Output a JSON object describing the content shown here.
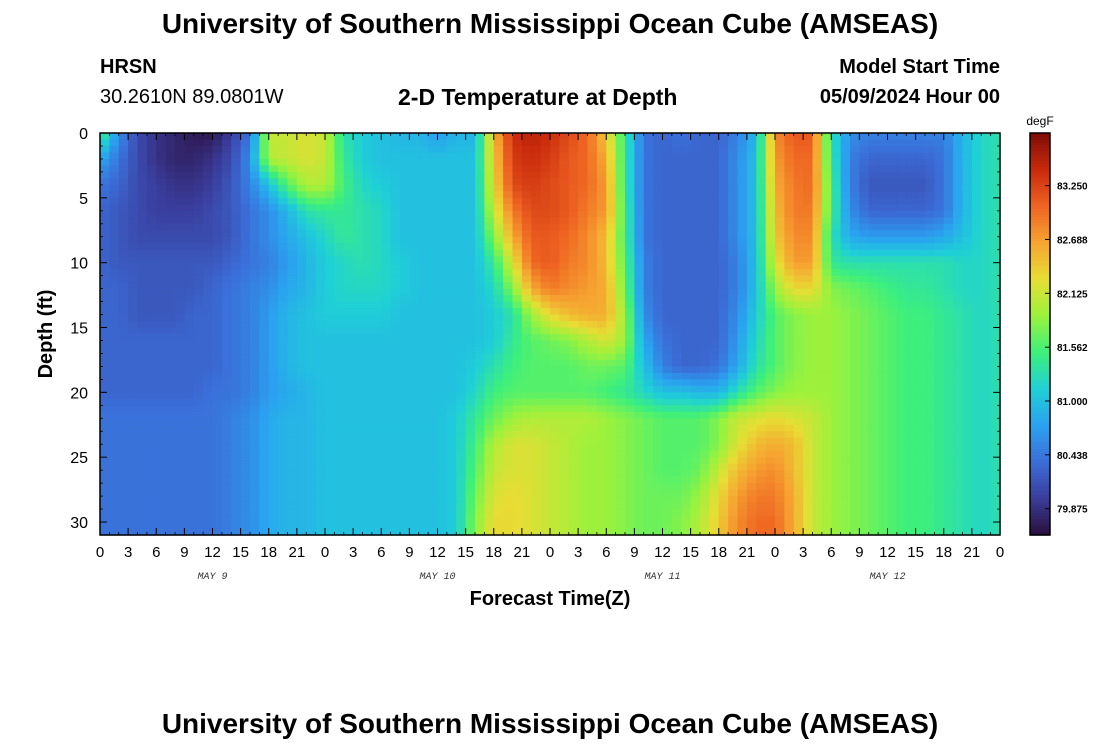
{
  "header": {
    "title": "University of Southern Mississippi Ocean Cube (AMSEAS)",
    "station": "HRSN",
    "coords": "30.2610N  89.0801W",
    "plot_title": "2-D Temperature at Depth",
    "start_label": "Model Start Time",
    "start_value": "05/09/2024 Hour 00"
  },
  "footer": {
    "title": "University of Southern Mississippi Ocean Cube (AMSEAS)"
  },
  "colors": {
    "colormap": [
      "#2a0f3c",
      "#3a3c9a",
      "#3b6ed8",
      "#2aa2f0",
      "#1fd0d6",
      "#3ef07a",
      "#9bf23c",
      "#e7dd34",
      "#f6a431",
      "#ee6322",
      "#c82a0c",
      "#7f0c05"
    ]
  },
  "chart_data": {
    "type": "heatmap",
    "title": "2-D Temperature at Depth",
    "xlabel": "Forecast Time(Z)",
    "ylabel": "Depth (ft)",
    "xlim": [
      0,
      96
    ],
    "ylim": [
      31,
      0
    ],
    "x_tick_hours": [
      0,
      3,
      6,
      9,
      12,
      15,
      18,
      21,
      24,
      27,
      30,
      33,
      36,
      39,
      42,
      45,
      48,
      51,
      54,
      57,
      60,
      63,
      66,
      69,
      72,
      75,
      78,
      81,
      84,
      87,
      90,
      93,
      96
    ],
    "x_tick_labels": [
      "0",
      "3",
      "6",
      "9",
      "12",
      "15",
      "18",
      "21",
      "0",
      "3",
      "6",
      "9",
      "12",
      "15",
      "18",
      "21",
      "0",
      "3",
      "6",
      "9",
      "12",
      "15",
      "18",
      "21",
      "0",
      "3",
      "6",
      "9",
      "12",
      "15",
      "18",
      "21",
      "0"
    ],
    "date_labels": [
      {
        "label": "MAY 9",
        "hour": 12
      },
      {
        "label": "MAY 10",
        "hour": 36
      },
      {
        "label": "MAY 11",
        "hour": 60
      },
      {
        "label": "MAY 12",
        "hour": 84
      }
    ],
    "y_ticks": [
      0,
      5,
      10,
      15,
      20,
      25,
      30
    ],
    "colorbar": {
      "unit": "degF",
      "min": 79.6,
      "max": 83.8,
      "ticks": [
        79.875,
        80.438,
        81.0,
        81.562,
        82.125,
        82.688,
        83.25
      ],
      "tick_labels": [
        "79.875",
        "80.438",
        "81.000",
        "81.562",
        "82.125",
        "82.688",
        "83.250"
      ]
    },
    "times": [
      0,
      2,
      4,
      6,
      8,
      10,
      12,
      14,
      16,
      18,
      20,
      22,
      24,
      26,
      28,
      30,
      32,
      34,
      36,
      38,
      40,
      42,
      44,
      46,
      48,
      50,
      52,
      54,
      56,
      58,
      60,
      62,
      64,
      66,
      68,
      70,
      72,
      74,
      76,
      78,
      80,
      82,
      84,
      86,
      88,
      90,
      92,
      94,
      96
    ],
    "depths": [
      0,
      2,
      4,
      6,
      8,
      10,
      12,
      14,
      16,
      18,
      20,
      22,
      24,
      26,
      28,
      30,
      31
    ],
    "values": [
      [
        81.6,
        80.6,
        80.1,
        79.9,
        79.8,
        79.7,
        79.7,
        80.0,
        80.4,
        82.1,
        82.1,
        82.2,
        82.1,
        81.3,
        81.1,
        81.0,
        80.9,
        80.9,
        80.7,
        80.9,
        80.9,
        82.5,
        83.4,
        83.5,
        83.4,
        83.2,
        83.0,
        82.4,
        81.4,
        80.4,
        80.3,
        80.4,
        80.3,
        80.3,
        80.5,
        80.9,
        82.8,
        83.1,
        83.1,
        81.3,
        80.6,
        80.5,
        80.5,
        80.5,
        80.5,
        80.5,
        80.9,
        81.2,
        81.3
      ],
      [
        80.8,
        80.4,
        80.1,
        79.9,
        79.8,
        79.8,
        79.9,
        80.1,
        80.6,
        82.0,
        82.1,
        82.2,
        82.1,
        81.4,
        81.1,
        81.0,
        81.0,
        81.0,
        81.0,
        81.0,
        81.0,
        82.4,
        83.3,
        83.4,
        83.3,
        83.1,
        83.0,
        82.6,
        81.4,
        80.4,
        80.3,
        80.3,
        80.3,
        80.3,
        80.6,
        81.0,
        82.7,
        83.0,
        83.0,
        81.4,
        80.5,
        80.3,
        80.3,
        80.3,
        80.3,
        80.4,
        80.9,
        81.2,
        81.3
      ],
      [
        80.4,
        80.3,
        80.1,
        80.0,
        79.9,
        79.9,
        80.0,
        80.2,
        80.5,
        81.0,
        81.6,
        82.0,
        82.0,
        81.5,
        81.2,
        81.1,
        81.0,
        81.0,
        81.0,
        81.0,
        81.0,
        82.3,
        83.2,
        83.3,
        83.2,
        83.1,
        83.0,
        82.7,
        81.4,
        80.4,
        80.3,
        80.3,
        80.3,
        80.3,
        80.6,
        81.0,
        82.6,
        82.9,
        83.0,
        81.5,
        80.5,
        80.2,
        80.2,
        80.2,
        80.2,
        80.4,
        80.9,
        81.2,
        81.3
      ],
      [
        80.3,
        80.2,
        80.1,
        80.0,
        80.0,
        80.0,
        80.1,
        80.2,
        80.4,
        80.6,
        80.9,
        81.3,
        81.4,
        81.4,
        81.3,
        81.2,
        81.0,
        81.0,
        81.0,
        81.0,
        81.0,
        82.1,
        82.9,
        83.2,
        83.2,
        83.1,
        82.9,
        82.7,
        81.5,
        80.4,
        80.3,
        80.3,
        80.3,
        80.3,
        80.6,
        81.0,
        82.5,
        82.9,
        82.9,
        81.5,
        80.6,
        80.3,
        80.3,
        80.3,
        80.3,
        80.4,
        80.9,
        81.2,
        81.3
      ],
      [
        80.3,
        80.2,
        80.1,
        80.1,
        80.1,
        80.1,
        80.1,
        80.2,
        80.4,
        80.6,
        80.8,
        81.0,
        81.2,
        81.4,
        81.3,
        81.2,
        81.0,
        81.0,
        81.0,
        81.0,
        81.0,
        81.8,
        82.6,
        83.1,
        83.1,
        83.0,
        82.8,
        82.5,
        81.5,
        80.4,
        80.3,
        80.3,
        80.3,
        80.3,
        80.6,
        81.0,
        82.4,
        82.8,
        82.8,
        81.3,
        80.8,
        80.7,
        80.7,
        80.7,
        80.7,
        80.8,
        81.0,
        81.2,
        81.3
      ],
      [
        80.3,
        80.2,
        80.2,
        80.2,
        80.2,
        80.2,
        80.2,
        80.3,
        80.4,
        80.5,
        80.7,
        80.9,
        81.1,
        81.2,
        81.3,
        81.2,
        81.1,
        81.0,
        81.0,
        81.0,
        81.0,
        81.4,
        82.2,
        83.0,
        83.1,
        82.9,
        82.8,
        82.5,
        81.6,
        80.5,
        80.3,
        80.3,
        80.3,
        80.3,
        80.5,
        81.0,
        82.2,
        82.7,
        82.7,
        81.4,
        81.3,
        81.3,
        81.3,
        81.3,
        81.3,
        81.3,
        81.2,
        81.2,
        81.3
      ],
      [
        80.3,
        80.3,
        80.2,
        80.2,
        80.2,
        80.2,
        80.3,
        80.4,
        80.5,
        80.6,
        80.8,
        80.9,
        81.1,
        81.2,
        81.2,
        81.2,
        81.1,
        81.0,
        81.0,
        81.0,
        81.0,
        81.2,
        81.8,
        82.6,
        82.9,
        82.8,
        82.7,
        82.6,
        81.7,
        80.5,
        80.3,
        80.3,
        80.3,
        80.3,
        80.5,
        81.0,
        81.9,
        82.3,
        82.3,
        81.8,
        81.7,
        81.6,
        81.5,
        81.4,
        81.4,
        81.3,
        81.2,
        81.2,
        81.3
      ],
      [
        80.3,
        80.3,
        80.2,
        80.2,
        80.2,
        80.3,
        80.3,
        80.4,
        80.5,
        80.7,
        80.9,
        81.0,
        81.1,
        81.1,
        81.1,
        81.1,
        81.0,
        81.0,
        81.0,
        81.0,
        81.0,
        81.1,
        81.3,
        81.9,
        82.3,
        82.5,
        82.6,
        82.6,
        81.9,
        80.6,
        80.3,
        80.3,
        80.3,
        80.3,
        80.6,
        81.1,
        81.6,
        81.8,
        81.9,
        81.9,
        81.8,
        81.7,
        81.6,
        81.5,
        81.5,
        81.4,
        81.3,
        81.2,
        81.3
      ],
      [
        80.3,
        80.3,
        80.3,
        80.3,
        80.3,
        80.3,
        80.3,
        80.4,
        80.5,
        80.7,
        80.9,
        81.0,
        81.0,
        81.0,
        81.0,
        81.0,
        81.0,
        81.0,
        81.0,
        81.0,
        81.0,
        81.1,
        81.4,
        81.6,
        81.7,
        81.8,
        82.0,
        82.2,
        81.9,
        80.8,
        80.4,
        80.3,
        80.3,
        80.3,
        80.7,
        81.2,
        81.6,
        81.8,
        81.9,
        81.9,
        81.8,
        81.7,
        81.6,
        81.5,
        81.5,
        81.4,
        81.3,
        81.2,
        81.3
      ],
      [
        80.3,
        80.3,
        80.3,
        80.3,
        80.3,
        80.3,
        80.3,
        80.4,
        80.5,
        80.7,
        80.9,
        81.0,
        81.0,
        81.0,
        81.0,
        81.0,
        81.0,
        81.0,
        81.0,
        81.0,
        81.1,
        81.3,
        81.5,
        81.6,
        81.6,
        81.6,
        81.7,
        81.7,
        81.6,
        81.0,
        80.5,
        80.3,
        80.3,
        80.4,
        80.8,
        81.3,
        81.6,
        81.8,
        81.9,
        81.9,
        81.8,
        81.7,
        81.6,
        81.5,
        81.5,
        81.4,
        81.3,
        81.2,
        81.3
      ],
      [
        80.3,
        80.3,
        80.3,
        80.3,
        80.3,
        80.3,
        80.4,
        80.4,
        80.5,
        80.7,
        80.8,
        80.9,
        81.0,
        81.0,
        81.0,
        81.0,
        81.0,
        81.0,
        81.0,
        81.0,
        81.2,
        81.5,
        81.6,
        81.6,
        81.6,
        81.6,
        81.6,
        81.5,
        81.4,
        81.2,
        81.0,
        81.0,
        80.9,
        80.9,
        81.3,
        81.6,
        81.8,
        81.9,
        81.9,
        81.9,
        81.8,
        81.7,
        81.6,
        81.5,
        81.5,
        81.4,
        81.3,
        81.2,
        81.3
      ],
      [
        80.4,
        80.4,
        80.4,
        80.4,
        80.4,
        80.4,
        80.4,
        80.5,
        80.6,
        80.8,
        80.9,
        80.9,
        81.0,
        81.0,
        81.0,
        81.0,
        81.0,
        81.0,
        81.0,
        81.1,
        81.4,
        81.7,
        81.9,
        82.0,
        82.0,
        82.0,
        82.0,
        81.9,
        81.8,
        81.7,
        81.6,
        81.6,
        81.6,
        81.8,
        82.1,
        82.2,
        82.3,
        82.2,
        82.1,
        81.9,
        81.8,
        81.7,
        81.6,
        81.5,
        81.5,
        81.4,
        81.3,
        81.2,
        81.3
      ],
      [
        80.4,
        80.4,
        80.4,
        80.4,
        80.4,
        80.4,
        80.4,
        80.5,
        80.6,
        80.8,
        80.9,
        80.9,
        81.0,
        81.0,
        81.0,
        81.0,
        81.0,
        81.0,
        81.0,
        81.1,
        81.5,
        82.0,
        82.2,
        82.2,
        82.1,
        82.0,
        81.9,
        81.9,
        81.8,
        81.7,
        81.6,
        81.6,
        81.6,
        81.8,
        82.2,
        82.5,
        82.6,
        82.5,
        82.1,
        81.9,
        81.8,
        81.7,
        81.6,
        81.5,
        81.5,
        81.4,
        81.3,
        81.2,
        81.3
      ],
      [
        80.4,
        80.4,
        80.4,
        80.4,
        80.4,
        80.4,
        80.4,
        80.5,
        80.6,
        80.8,
        80.9,
        80.9,
        81.0,
        81.0,
        81.0,
        81.0,
        81.0,
        81.0,
        81.0,
        81.1,
        81.6,
        82.1,
        82.2,
        82.2,
        82.1,
        82.0,
        81.9,
        81.9,
        81.8,
        81.7,
        81.6,
        81.6,
        81.7,
        82.1,
        82.5,
        82.7,
        82.8,
        82.5,
        82.1,
        81.9,
        81.8,
        81.7,
        81.6,
        81.5,
        81.5,
        81.4,
        81.3,
        81.2,
        81.3
      ],
      [
        80.4,
        80.4,
        80.4,
        80.4,
        80.4,
        80.4,
        80.4,
        80.5,
        80.6,
        80.8,
        80.9,
        80.9,
        81.0,
        81.0,
        81.0,
        81.0,
        81.0,
        81.0,
        81.0,
        81.1,
        81.7,
        82.2,
        82.3,
        82.2,
        82.1,
        82.0,
        81.9,
        81.9,
        81.8,
        81.7,
        81.7,
        81.7,
        81.9,
        82.3,
        82.7,
        82.9,
        82.9,
        82.6,
        82.1,
        81.9,
        81.8,
        81.7,
        81.6,
        81.5,
        81.5,
        81.4,
        81.3,
        81.2,
        81.3
      ],
      [
        80.4,
        80.4,
        80.4,
        80.4,
        80.4,
        80.4,
        80.4,
        80.5,
        80.6,
        80.8,
        80.9,
        80.9,
        81.0,
        81.0,
        81.0,
        81.0,
        81.0,
        81.0,
        81.0,
        81.1,
        81.8,
        82.3,
        82.3,
        82.2,
        82.1,
        82.0,
        81.9,
        81.9,
        81.8,
        81.7,
        81.7,
        81.8,
        82.0,
        82.4,
        82.8,
        83.0,
        83.0,
        82.6,
        82.1,
        81.9,
        81.8,
        81.7,
        81.6,
        81.5,
        81.5,
        81.4,
        81.3,
        81.2,
        81.3
      ],
      [
        80.4,
        80.4,
        80.4,
        80.4,
        80.4,
        80.4,
        80.4,
        80.5,
        80.6,
        80.8,
        80.9,
        80.9,
        81.0,
        81.0,
        81.0,
        81.0,
        81.0,
        81.0,
        81.0,
        81.1,
        81.8,
        82.3,
        82.3,
        82.2,
        82.1,
        82.0,
        81.9,
        81.9,
        81.8,
        81.7,
        81.7,
        81.8,
        82.0,
        82.4,
        82.8,
        83.0,
        83.0,
        82.6,
        82.1,
        81.9,
        81.8,
        81.7,
        81.6,
        81.5,
        81.5,
        81.4,
        81.3,
        81.2,
        81.3
      ]
    ]
  }
}
